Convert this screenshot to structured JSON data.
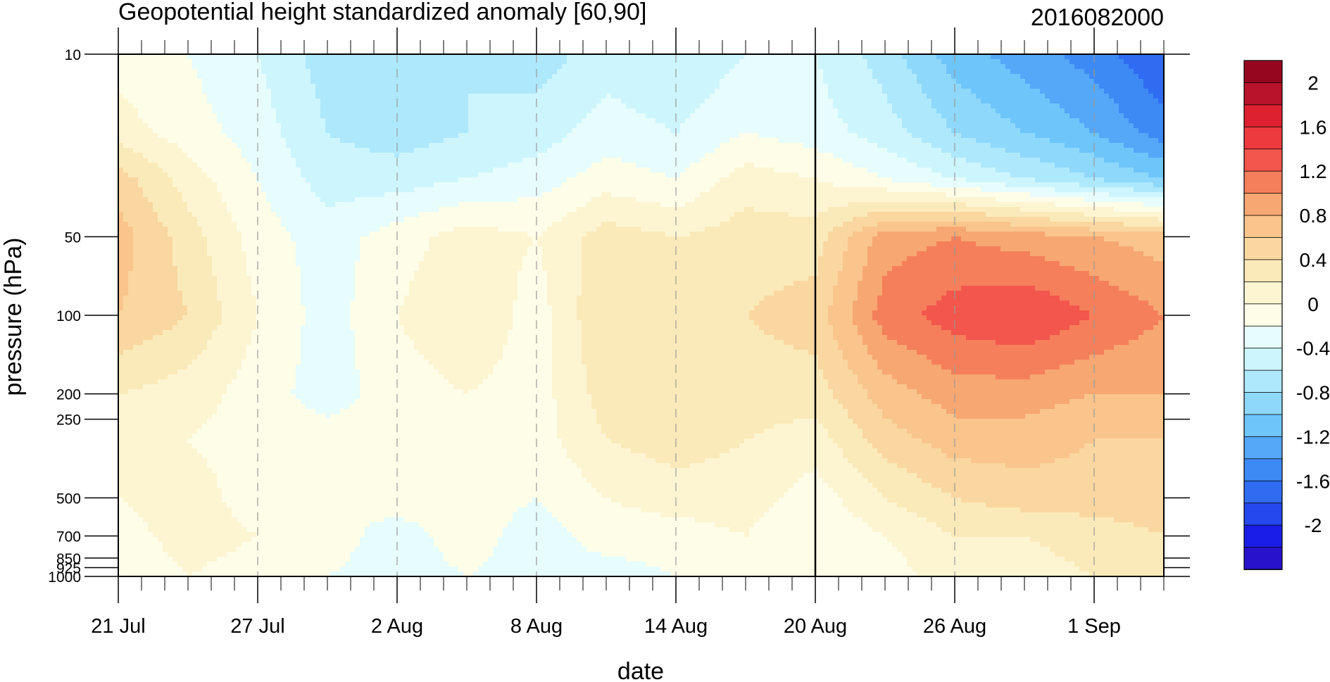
{
  "chart_data": {
    "type": "heatmap",
    "title": "Geopotential height standardized anomaly [60,90]",
    "right_title": "2016082000",
    "xlabel": "date",
    "ylabel": "pressure (hPa)",
    "x_ticks": [
      "21 Jul",
      "27 Jul",
      "2 Aug",
      "8 Aug",
      "14 Aug",
      "20 Aug",
      "26 Aug",
      "1 Sep"
    ],
    "y_ticks": [
      "10",
      "50",
      "100",
      "200",
      "250",
      "500",
      "700",
      "850",
      "925",
      "1000"
    ],
    "y_scale": "log",
    "ylim": [
      1000,
      10
    ],
    "x_day_range": [
      0,
      45
    ],
    "marker_day": 30,
    "colorbar": {
      "labels": [
        "2",
        "1.6",
        "1.2",
        "0.8",
        "0.4",
        "0",
        "-0.4",
        "-0.8",
        "-1.2",
        "-1.6",
        "-2"
      ],
      "levels": [
        -2.2,
        -2,
        -1.8,
        -1.6,
        -1.4,
        -1.2,
        -1,
        -0.8,
        -0.6,
        -0.4,
        -0.2,
        0,
        0.2,
        0.4,
        0.6,
        0.8,
        1,
        1.2,
        1.4,
        1.6,
        1.8,
        2,
        2.2
      ],
      "colors": [
        "#2812cc",
        "#1a1de8",
        "#2448ee",
        "#2f6cf2",
        "#3d8af5",
        "#55a7f8",
        "#6ec5fa",
        "#8ed8fb",
        "#aee8fc",
        "#cdf5fd",
        "#e6fcfd",
        "#fdfde8",
        "#fdf5d2",
        "#fbeab9",
        "#fad7a0",
        "#f9c58c",
        "#f7a772",
        "#f57f5b",
        "#f2564c",
        "#ed3a3f",
        "#de2130",
        "#b8132a",
        "#96071f"
      ]
    },
    "anomaly_grid": {
      "days": [
        0,
        3,
        6,
        9,
        12,
        15,
        18,
        21,
        24,
        27,
        30,
        33,
        36,
        39,
        42,
        45
      ],
      "levels_hpa": [
        10,
        20,
        30,
        50,
        100,
        200,
        300,
        500,
        700,
        1000
      ],
      "values": [
        [
          0.1,
          0.0,
          -0.2,
          -0.5,
          -0.6,
          -0.4,
          -0.5,
          -0.3,
          -0.4,
          -0.2,
          -0.2,
          -0.5,
          -0.9,
          -1.1,
          -1.3,
          -1.6
        ],
        [
          0.3,
          0.1,
          -0.1,
          -0.4,
          -0.5,
          -0.4,
          -0.3,
          -0.1,
          -0.2,
          0.0,
          -0.1,
          -0.3,
          -0.6,
          -0.8,
          -1.0,
          -1.3
        ],
        [
          0.7,
          0.3,
          0.0,
          -0.3,
          -0.3,
          -0.2,
          -0.1,
          0.1,
          0.0,
          0.3,
          0.2,
          0.0,
          -0.2,
          -0.4,
          -0.6,
          -0.8
        ],
        [
          0.9,
          0.5,
          0.1,
          -0.1,
          0.1,
          0.3,
          0.2,
          0.5,
          0.4,
          0.5,
          0.5,
          1.1,
          1.2,
          1.1,
          1.0,
          0.9
        ],
        [
          0.8,
          0.6,
          0.2,
          -0.1,
          0.2,
          0.4,
          0.1,
          0.6,
          0.5,
          0.6,
          0.7,
          1.3,
          1.5,
          1.6,
          1.4,
          1.2
        ],
        [
          0.4,
          0.3,
          0.1,
          -0.1,
          0.1,
          0.2,
          0.1,
          0.5,
          0.5,
          0.5,
          0.5,
          0.9,
          1.1,
          1.1,
          1.0,
          1.0
        ],
        [
          0.3,
          0.2,
          0.1,
          0.1,
          0.1,
          0.1,
          0.1,
          0.4,
          0.5,
          0.4,
          0.3,
          0.7,
          0.9,
          0.9,
          0.8,
          0.8
        ],
        [
          0.2,
          0.3,
          0.1,
          0.0,
          0.1,
          0.1,
          0.0,
          0.2,
          0.3,
          0.3,
          0.1,
          0.4,
          0.6,
          0.7,
          0.7,
          0.7
        ],
        [
          0.1,
          0.3,
          0.2,
          0.1,
          -0.1,
          0.1,
          -0.1,
          0.1,
          0.1,
          0.2,
          0.0,
          0.2,
          0.4,
          0.4,
          0.5,
          0.6
        ],
        [
          0.0,
          0.2,
          0.1,
          0.0,
          -0.1,
          0.0,
          -0.1,
          -0.1,
          0.0,
          0.0,
          0.0,
          0.1,
          0.3,
          0.3,
          0.4,
          0.5
        ]
      ]
    }
  }
}
